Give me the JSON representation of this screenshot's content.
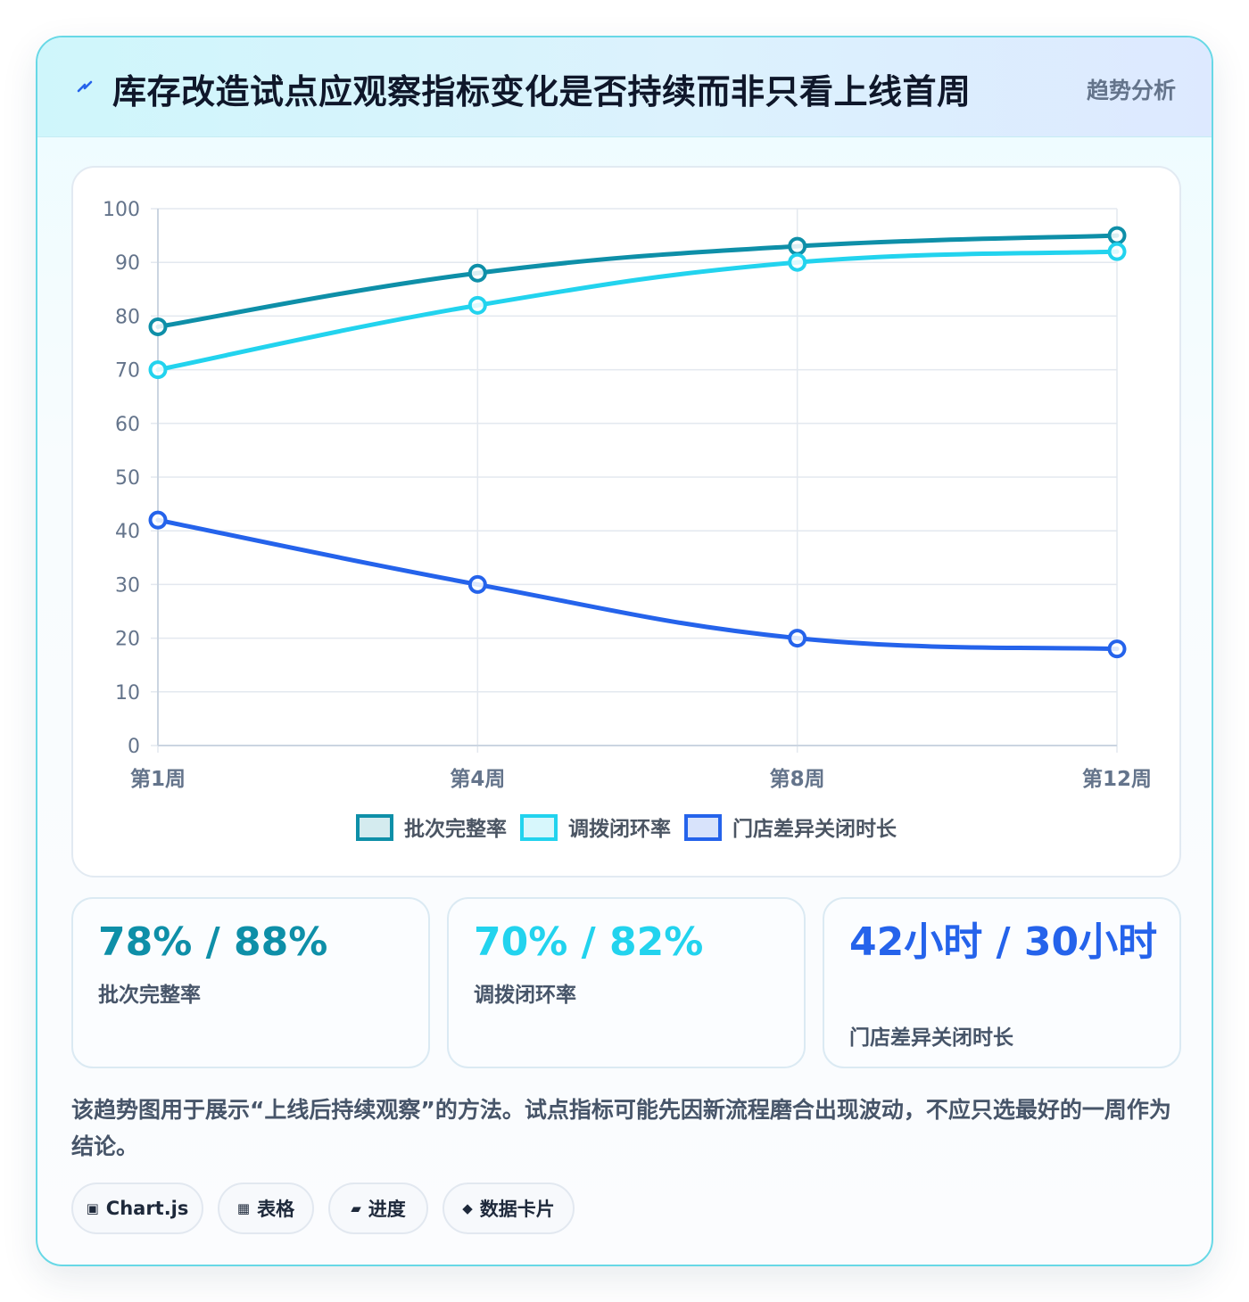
{
  "header": {
    "title": "库存改造试点应观察指标变化是否持续而非只看上线首周",
    "tag": "趋势分析",
    "icon": "lightning-icon"
  },
  "chart_data": {
    "type": "line",
    "categories": [
      "第1周",
      "第4周",
      "第8周",
      "第12周"
    ],
    "y_ticks": [
      "0",
      "10",
      "20",
      "30",
      "40",
      "50",
      "60",
      "70",
      "80",
      "90",
      "100"
    ],
    "ylim": [
      0,
      100
    ],
    "grid": true,
    "legend_position": "bottom",
    "series": [
      {
        "name": "批次完整率",
        "values": [
          78,
          88,
          93,
          95
        ],
        "color": "#0e8fa8"
      },
      {
        "name": "调拨闭环率",
        "values": [
          70,
          82,
          90,
          92
        ],
        "color": "#22d3ee"
      },
      {
        "name": "门店差异关闭时长",
        "values": [
          42,
          30,
          20,
          18
        ],
        "color": "#2563eb"
      }
    ]
  },
  "stats": [
    {
      "value": "78% / 88%",
      "label": "批次完整率",
      "color": "#0e8fa8"
    },
    {
      "value": "70% / 82%",
      "label": "调拨闭环率",
      "color": "#22d3ee"
    },
    {
      "value": "42小时 / 30小时",
      "label": "门店差异关闭时长",
      "color": "#2563eb"
    }
  ],
  "description": "该趋势图用于展示“上线后持续观察”的方法。试点指标可能先因新流程磨合出现波动，不应只选最好的一周作为结论。",
  "chips": [
    {
      "icon": "▣",
      "icon_name": "chart-icon",
      "label": "Chart.js"
    },
    {
      "icon": "▦",
      "icon_name": "table-icon",
      "label": "表格"
    },
    {
      "icon": "▰",
      "icon_name": "progress-icon",
      "label": "进度"
    },
    {
      "icon": "◆",
      "icon_name": "card-icon",
      "label": "数据卡片"
    }
  ]
}
